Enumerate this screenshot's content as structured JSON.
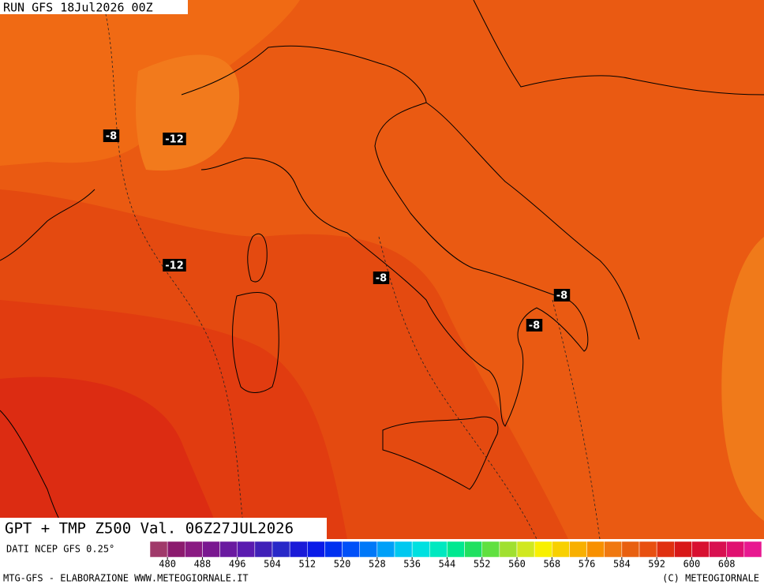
{
  "header": {
    "run": "RUN GFS 18Jul2026 00Z"
  },
  "title": "GPT + TMP Z500 Val. 06Z27JUL2026",
  "source": "DATI NCEP GFS 0.25°",
  "footer_left": "MTG-GFS - ELABORAZIONE WWW.METEOGIORNALE.IT",
  "footer_right": "(C) METEOGIORNALE",
  "contour_labels": [
    "-8",
    "-12",
    "-12",
    "-8",
    "-8",
    "-8"
  ],
  "colorbar": {
    "ticks": [
      480,
      488,
      496,
      504,
      512,
      520,
      528,
      536,
      544,
      552,
      560,
      568,
      576,
      584,
      592,
      600,
      608
    ],
    "colors": [
      "#a03a6a",
      "#8c1a6e",
      "#8a1a82",
      "#7a1890",
      "#6a1aa0",
      "#5a1ab0",
      "#4020b8",
      "#2828c8",
      "#1a1ad8",
      "#0a1ae8",
      "#0030f0",
      "#0050f8",
      "#0078f8",
      "#00a0f8",
      "#00c8f0",
      "#00e0e0",
      "#00e8c0",
      "#00e890",
      "#20e060",
      "#60e040",
      "#a0e030",
      "#d0e820",
      "#f8f000",
      "#f8d000",
      "#f8b000",
      "#f89000",
      "#f07810",
      "#e86010",
      "#e85010",
      "#e03010",
      "#d81818",
      "#d81030",
      "#d81050",
      "#e01070",
      "#e81890"
    ]
  }
}
